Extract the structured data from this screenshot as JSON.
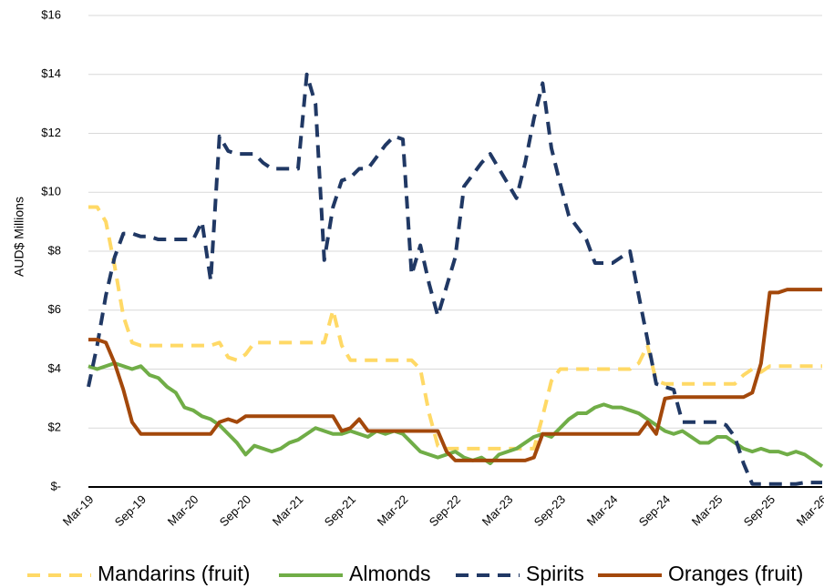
{
  "chart_data": {
    "type": "line",
    "y_label": "AUD$ Millions",
    "categories": [
      "Mar-19",
      null,
      null,
      null,
      null,
      null,
      "Sep-19",
      null,
      null,
      null,
      null,
      null,
      "Mar-20",
      null,
      null,
      null,
      null,
      null,
      "Sep-20",
      null,
      null,
      null,
      null,
      null,
      "Mar-21",
      null,
      null,
      null,
      null,
      null,
      "Sep-21",
      null,
      null,
      null,
      null,
      null,
      "Mar-22",
      null,
      null,
      null,
      null,
      null,
      "Sep-22",
      null,
      null,
      null,
      null,
      null,
      "Mar-23",
      null,
      null,
      null,
      null,
      null,
      "Sep-23",
      null,
      null,
      null,
      null,
      null,
      "Mar-24",
      null,
      null,
      null,
      null,
      null,
      "Sep-24",
      null,
      null,
      null,
      null,
      null,
      "Mar-25",
      null,
      null,
      null,
      null,
      null,
      "Sep-25",
      null,
      null,
      null,
      null,
      null,
      "Mar-26"
    ],
    "ylim": [
      0,
      16
    ],
    "yticks": [
      {
        "value": 0,
        "label": "$-"
      },
      {
        "value": 2,
        "label": "$2"
      },
      {
        "value": 4,
        "label": "$4"
      },
      {
        "value": 6,
        "label": "$6"
      },
      {
        "value": 8,
        "label": "$8"
      },
      {
        "value": 10,
        "label": "$10"
      },
      {
        "value": 12,
        "label": "$12"
      },
      {
        "value": 14,
        "label": "$14"
      },
      {
        "value": 16,
        "label": "$16"
      }
    ],
    "grid": true,
    "legend": "bottom",
    "series": [
      {
        "name": "Mandarins (fruit)",
        "color": "#ffd966",
        "dashed": true,
        "values": [
          9.5,
          9.5,
          9.0,
          7.5,
          5.8,
          4.9,
          4.8,
          4.8,
          4.8,
          4.8,
          4.8,
          4.8,
          4.8,
          4.8,
          4.8,
          4.9,
          4.4,
          4.3,
          4.5,
          4.9,
          4.9,
          4.9,
          4.9,
          4.9,
          4.9,
          4.9,
          4.9,
          4.9,
          6.0,
          4.8,
          4.3,
          4.3,
          4.3,
          4.3,
          4.3,
          4.3,
          4.3,
          4.3,
          4.0,
          2.5,
          1.4,
          1.3,
          1.3,
          1.3,
          1.3,
          1.3,
          1.3,
          1.3,
          1.3,
          1.3,
          1.3,
          1.3,
          2.4,
          3.6,
          4.0,
          4.0,
          4.0,
          4.0,
          4.0,
          4.0,
          4.0,
          4.0,
          4.0,
          4.2,
          4.8,
          3.6,
          3.5,
          3.5,
          3.5,
          3.5,
          3.5,
          3.5,
          3.5,
          3.5,
          3.5,
          3.8,
          4.0,
          3.9,
          4.1,
          4.1,
          4.1,
          4.1,
          4.1,
          4.1,
          4.1
        ]
      },
      {
        "name": "Almonds",
        "color": "#70ad47",
        "dashed": false,
        "values": [
          4.1,
          4.0,
          4.1,
          4.2,
          4.1,
          4.0,
          4.1,
          3.8,
          3.7,
          3.4,
          3.2,
          2.7,
          2.6,
          2.4,
          2.3,
          2.1,
          1.8,
          1.5,
          1.1,
          1.4,
          1.3,
          1.2,
          1.3,
          1.5,
          1.6,
          1.8,
          2.0,
          1.9,
          1.8,
          1.8,
          1.9,
          1.8,
          1.7,
          1.9,
          1.8,
          1.9,
          1.8,
          1.5,
          1.2,
          1.1,
          1.0,
          1.1,
          1.2,
          1.0,
          0.9,
          1.0,
          0.8,
          1.1,
          1.2,
          1.3,
          1.5,
          1.7,
          1.8,
          1.7,
          2.0,
          2.3,
          2.5,
          2.5,
          2.7,
          2.8,
          2.7,
          2.7,
          2.6,
          2.5,
          2.3,
          2.1,
          1.9,
          1.8,
          1.9,
          1.7,
          1.5,
          1.5,
          1.7,
          1.7,
          1.5,
          1.3,
          1.2,
          1.3,
          1.2,
          1.2,
          1.1,
          1.2,
          1.1,
          0.9,
          0.7
        ]
      },
      {
        "name": "Spirits",
        "color": "#203864",
        "dashed": true,
        "values": [
          3.4,
          4.8,
          6.5,
          7.8,
          8.6,
          8.6,
          8.5,
          8.5,
          8.4,
          8.4,
          8.4,
          8.4,
          8.4,
          9.0,
          7.0,
          11.9,
          11.4,
          11.3,
          11.3,
          11.3,
          11.0,
          10.8,
          10.8,
          10.8,
          10.8,
          14.0,
          13.0,
          7.7,
          9.5,
          10.4,
          10.5,
          10.8,
          10.8,
          11.2,
          11.6,
          11.9,
          11.8,
          7.2,
          8.2,
          6.9,
          5.8,
          6.8,
          7.8,
          10.2,
          10.6,
          11.0,
          11.3,
          10.8,
          10.3,
          9.8,
          11.0,
          12.5,
          13.7,
          11.5,
          10.3,
          9.2,
          8.8,
          8.4,
          7.6,
          7.6,
          7.6,
          7.8,
          8.0,
          6.5,
          5.0,
          3.5,
          3.4,
          3.3,
          2.2,
          2.2,
          2.2,
          2.2,
          2.2,
          2.1,
          1.7,
          0.8,
          0.1,
          0.1,
          0.1,
          0.1,
          0.1,
          0.1,
          0.15,
          0.15,
          0.15
        ]
      },
      {
        "name": "Oranges (fruit)",
        "color": "#a3480b",
        "dashed": false,
        "values": [
          5.0,
          5.0,
          4.9,
          4.2,
          3.3,
          2.2,
          1.8,
          1.8,
          1.8,
          1.8,
          1.8,
          1.8,
          1.8,
          1.8,
          1.8,
          2.2,
          2.3,
          2.2,
          2.4,
          2.4,
          2.4,
          2.4,
          2.4,
          2.4,
          2.4,
          2.4,
          2.4,
          2.4,
          2.4,
          1.9,
          2.0,
          2.3,
          1.9,
          1.9,
          1.9,
          1.9,
          1.9,
          1.9,
          1.9,
          1.9,
          1.9,
          1.2,
          0.9,
          0.9,
          0.9,
          0.9,
          0.9,
          0.9,
          0.9,
          0.9,
          0.9,
          1.0,
          1.8,
          1.8,
          1.8,
          1.8,
          1.8,
          1.8,
          1.8,
          1.8,
          1.8,
          1.8,
          1.8,
          1.8,
          2.2,
          1.8,
          3.0,
          3.05,
          3.05,
          3.05,
          3.05,
          3.05,
          3.05,
          3.05,
          3.05,
          3.05,
          3.2,
          4.2,
          6.6,
          6.6,
          6.7,
          6.7,
          6.7,
          6.7,
          6.7
        ]
      }
    ]
  }
}
